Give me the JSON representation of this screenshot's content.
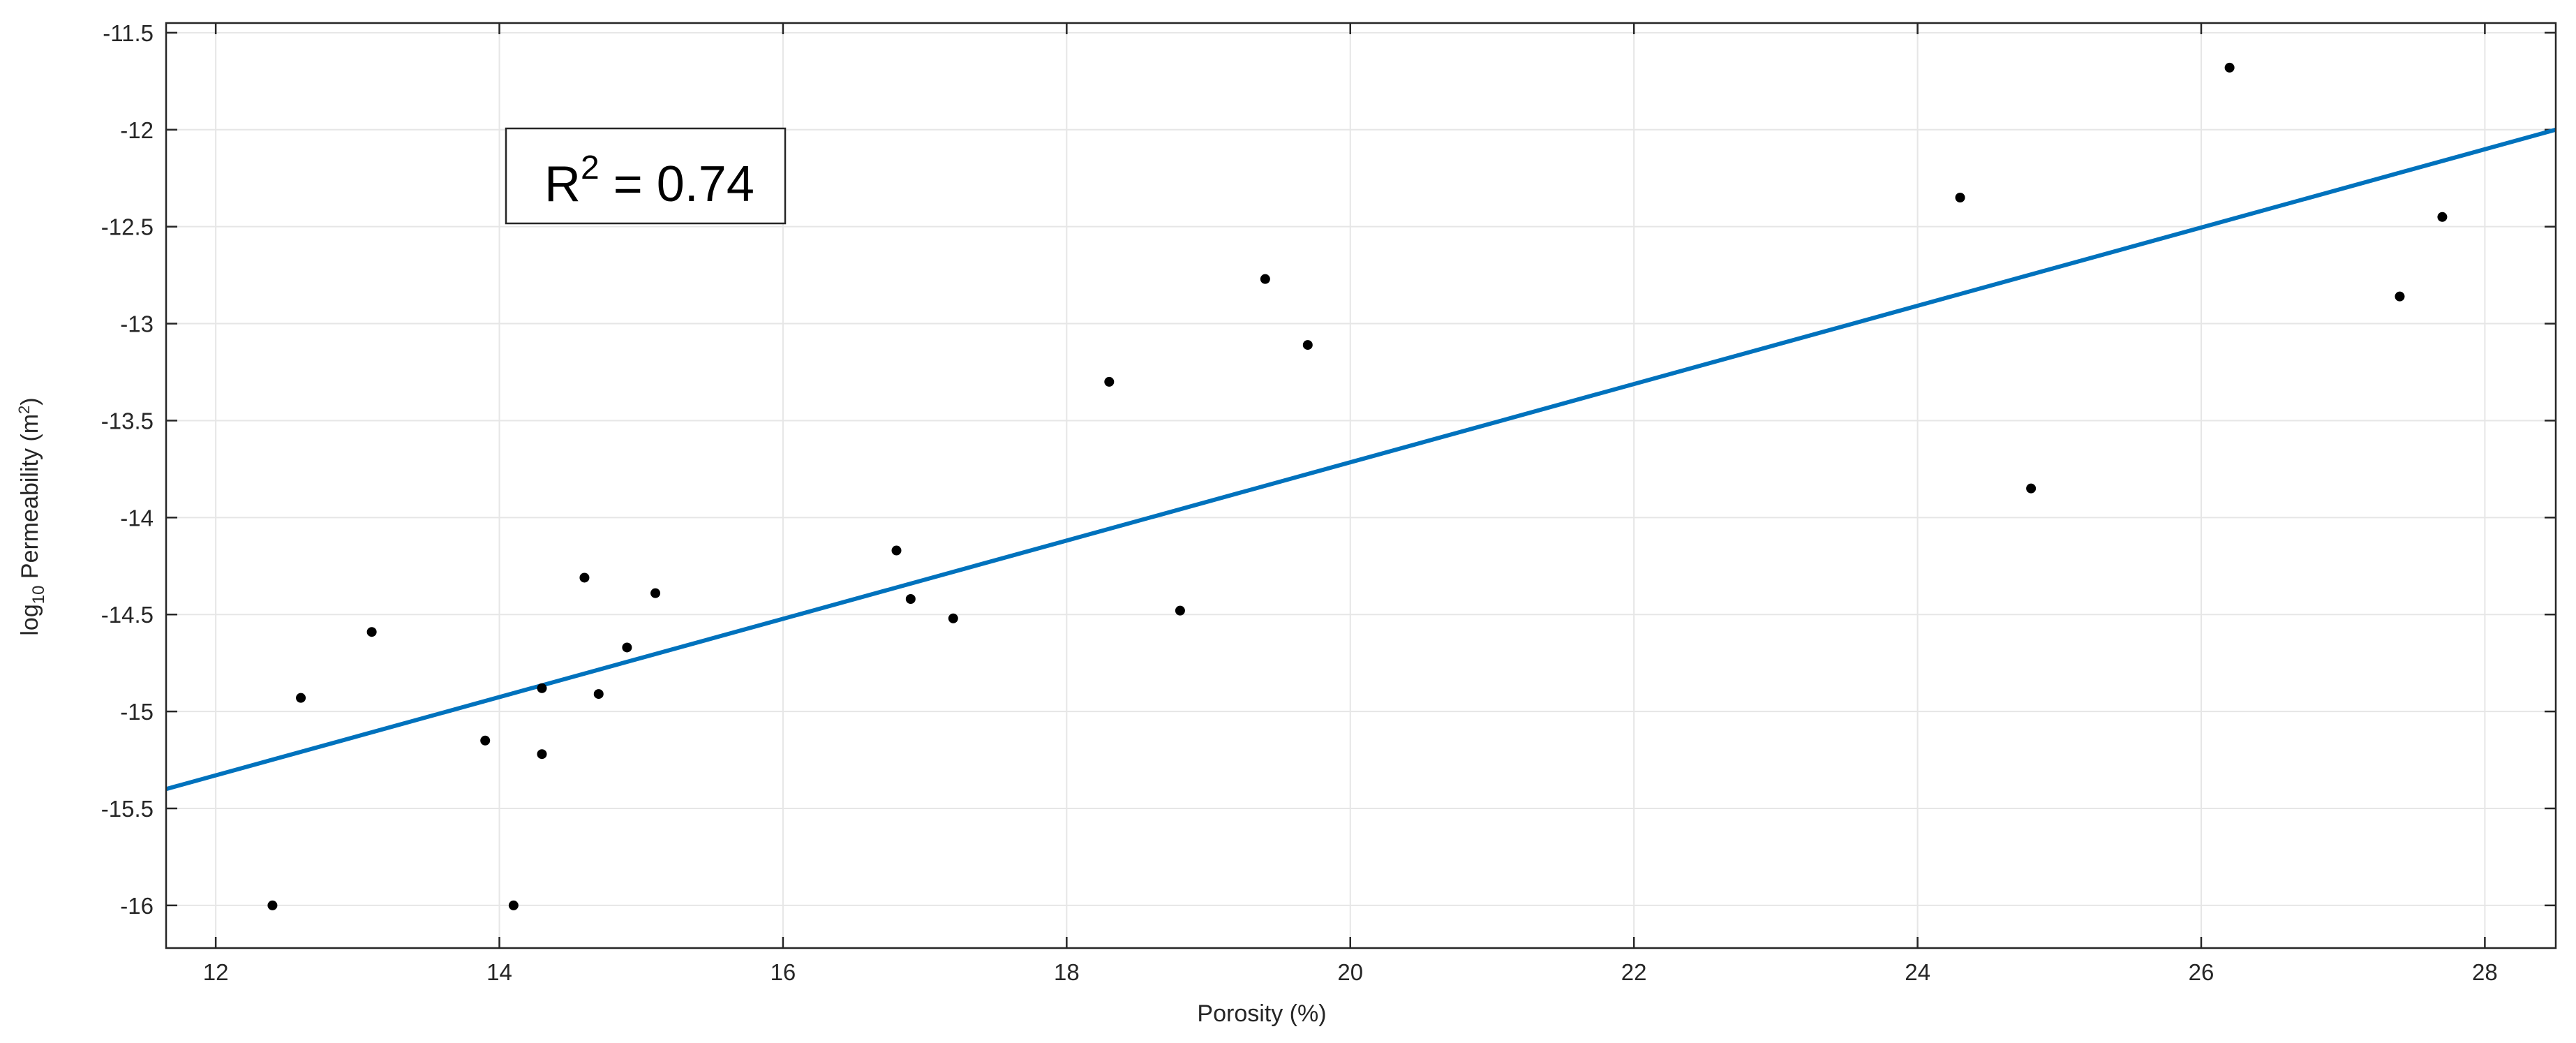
{
  "chart_data": {
    "type": "scatter",
    "xlabel": "Porosity (%)",
    "ylabel_main": "Permeability (m",
    "ylabel_log": "log",
    "ylabel_log_sub": "10",
    "ylabel_sup": "2",
    "ylabel_close": ")",
    "xlim": [
      11.65,
      28.5
    ],
    "ylim": [
      -16.22,
      -11.45
    ],
    "xticks": [
      12,
      14,
      16,
      18,
      20,
      22,
      24,
      26,
      28
    ],
    "yticks": [
      -16,
      -15.5,
      -15,
      -14.5,
      -14,
      -13.5,
      -13,
      -12.5,
      -12,
      -11.5
    ],
    "grid": true,
    "points": [
      {
        "x": 12.4,
        "y": -16.0
      },
      {
        "x": 12.6,
        "y": -14.93
      },
      {
        "x": 13.1,
        "y": -14.59
      },
      {
        "x": 13.9,
        "y": -15.15
      },
      {
        "x": 14.1,
        "y": -16.0
      },
      {
        "x": 14.3,
        "y": -14.88
      },
      {
        "x": 14.3,
        "y": -15.22
      },
      {
        "x": 14.6,
        "y": -14.31
      },
      {
        "x": 14.7,
        "y": -14.91
      },
      {
        "x": 14.9,
        "y": -14.67
      },
      {
        "x": 15.1,
        "y": -14.39
      },
      {
        "x": 16.8,
        "y": -14.17
      },
      {
        "x": 16.9,
        "y": -14.42
      },
      {
        "x": 17.2,
        "y": -14.52
      },
      {
        "x": 18.3,
        "y": -13.3
      },
      {
        "x": 18.8,
        "y": -14.48
      },
      {
        "x": 19.4,
        "y": -12.77
      },
      {
        "x": 19.7,
        "y": -13.11
      },
      {
        "x": 24.3,
        "y": -12.35
      },
      {
        "x": 24.8,
        "y": -13.85
      },
      {
        "x": 26.2,
        "y": -11.68
      },
      {
        "x": 27.4,
        "y": -12.86
      },
      {
        "x": 27.7,
        "y": -12.45
      }
    ],
    "fit_line": {
      "x": [
        11.65,
        28.5
      ],
      "y": [
        -15.4,
        -12.0
      ],
      "color": "#0072BD"
    },
    "annotation": {
      "text": "R",
      "sup": "2",
      "tail": " = 0.74"
    },
    "marker_color": "#000000",
    "grid_color": "#e6e6e6"
  }
}
